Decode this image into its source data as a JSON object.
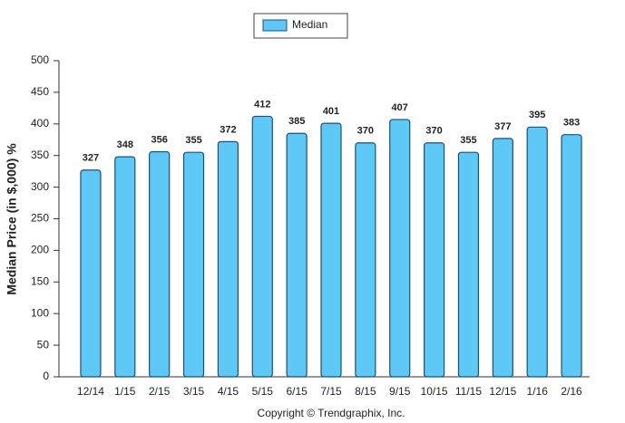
{
  "chart_data": {
    "type": "bar",
    "legend": "Median",
    "y_label": "Median Price (in $,000) %",
    "footer": "Copyright © Trendgraphix, Inc.",
    "categories": [
      "12/14",
      "1/15",
      "2/15",
      "3/15",
      "4/15",
      "5/15",
      "6/15",
      "7/15",
      "8/15",
      "9/15",
      "10/15",
      "11/15",
      "12/15",
      "1/16",
      "2/16"
    ],
    "values": [
      327,
      348,
      356,
      355,
      372,
      412,
      385,
      401,
      370,
      407,
      370,
      355,
      377,
      395,
      383
    ],
    "color": "#5ec8f7",
    "ylim": [
      0,
      500
    ],
    "yticks": [
      0,
      50,
      100,
      150,
      200,
      250,
      300,
      350,
      400,
      450,
      500
    ]
  }
}
